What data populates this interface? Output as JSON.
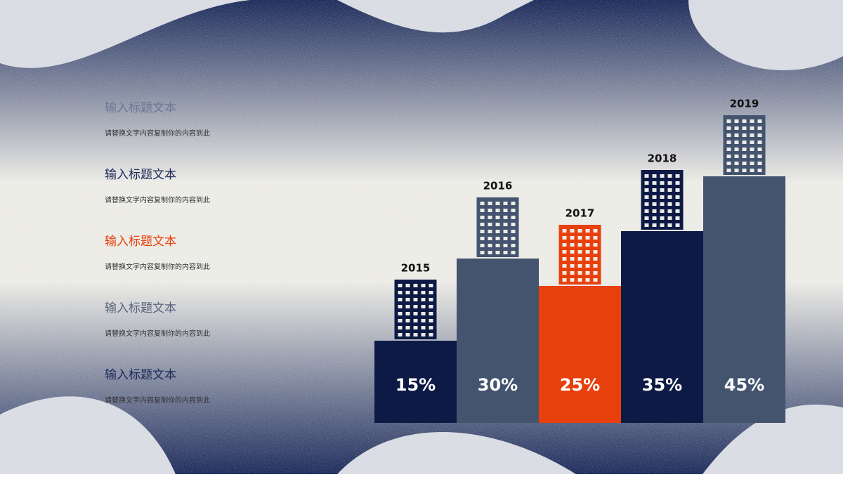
{
  "chart_data": {
    "type": "bar",
    "categories": [
      "2015",
      "2016",
      "2017",
      "2018",
      "2019"
    ],
    "values": [
      15,
      30,
      25,
      35,
      45
    ],
    "value_labels": [
      "15%",
      "30%",
      "25%",
      "35%",
      "45%"
    ],
    "colors": [
      "#0d1a45",
      "#44546f",
      "#e8400c",
      "#0d1a45",
      "#44546f"
    ]
  },
  "items": [
    {
      "title": "输入标题文本",
      "text": "请替换文字内容复制你的内容到此",
      "color": "#6b7894"
    },
    {
      "title": "输入标题文本",
      "text": "请替换文字内容复制你的内容到此",
      "color": "#1b2a5a"
    },
    {
      "title": "输入标题文本",
      "text": "请替换文字内容复制你的内容到此",
      "color": "#e8400c"
    },
    {
      "title": "输入标题文本",
      "text": "请替换文字内容复制你的内容到此",
      "color": "#56657f"
    },
    {
      "title": "输入标题文本",
      "text": "请替换文字内容复制你的内容到此",
      "color": "#1b2a5a"
    }
  ]
}
